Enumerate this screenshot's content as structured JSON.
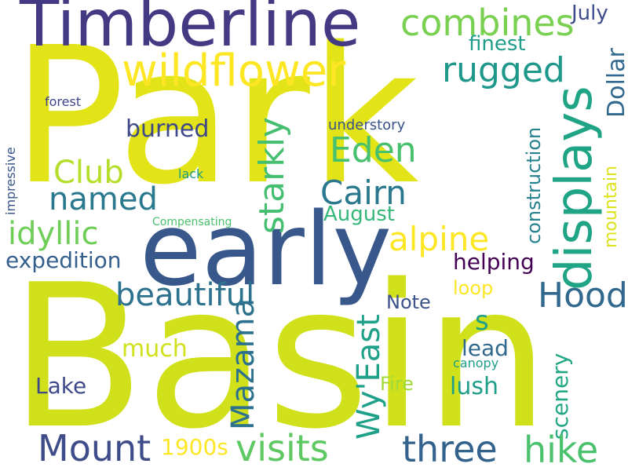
{
  "words": [
    {
      "text": "Park",
      "color": "#e2e418"
    },
    {
      "text": "Basin",
      "color": "#d0e11c"
    },
    {
      "text": "early",
      "color": "#38588c"
    },
    {
      "text": "Timberline",
      "color": "#443983"
    },
    {
      "text": "wildflower",
      "color": "#fde725"
    },
    {
      "text": "displays",
      "color": "#20a486"
    },
    {
      "text": "combines",
      "color": "#7ad151"
    },
    {
      "text": "rugged",
      "color": "#1f988b"
    },
    {
      "text": "finest",
      "color": "#1f9e89"
    },
    {
      "text": "July",
      "color": "#3e4c8a"
    },
    {
      "text": "Dollar",
      "color": "#31688e"
    },
    {
      "text": "starkly",
      "color": "#44bf70"
    },
    {
      "text": "Eden",
      "color": "#48c16e"
    },
    {
      "text": "burned",
      "color": "#3e4989"
    },
    {
      "text": "Club",
      "color": "#b5de2b"
    },
    {
      "text": "named",
      "color": "#2a788e"
    },
    {
      "text": "Cairn",
      "color": "#2a788e"
    },
    {
      "text": "August",
      "color": "#35b779"
    },
    {
      "text": "idyllic",
      "color": "#6ece58"
    },
    {
      "text": "alpine",
      "color": "#fde725"
    },
    {
      "text": "expedition",
      "color": "#355f8d"
    },
    {
      "text": "beautiful",
      "color": "#2c728e"
    },
    {
      "text": "Hood",
      "color": "#31688e"
    },
    {
      "text": "helping",
      "color": "#440154"
    },
    {
      "text": "construction",
      "color": "#26828e"
    },
    {
      "text": "mountain",
      "color": "#dde318"
    },
    {
      "text": "understory",
      "color": "#3b528b"
    },
    {
      "text": "forest",
      "color": "#414487"
    },
    {
      "text": "impressive",
      "color": "#39568c"
    },
    {
      "text": "lack",
      "color": "#1f9a8a"
    },
    {
      "text": "Compensating",
      "color": "#4ac16d"
    },
    {
      "text": "Note",
      "color": "#3b528b"
    },
    {
      "text": "loop",
      "color": "#fde725"
    },
    {
      "text": "s",
      "color": "#1f9e89"
    },
    {
      "text": "Mazama",
      "color": "#2c728e"
    },
    {
      "text": "Wy'East",
      "color": "#1fa088"
    },
    {
      "text": "lead",
      "color": "#31688e"
    },
    {
      "text": "scenery",
      "color": "#22a785"
    },
    {
      "text": "canopy",
      "color": "#1f9e89"
    },
    {
      "text": "Fire",
      "color": "#a0da39"
    },
    {
      "text": "much",
      "color": "#d0e11c"
    },
    {
      "text": "lush",
      "color": "#1f9e89"
    },
    {
      "text": "Lake",
      "color": "#3e4989"
    },
    {
      "text": "Mount",
      "color": "#3e4c8a"
    },
    {
      "text": "visits",
      "color": "#5ec962"
    },
    {
      "text": "three",
      "color": "#33638d"
    },
    {
      "text": "hike",
      "color": "#4ac16d"
    },
    {
      "text": "1900s",
      "color": "#fde725"
    }
  ]
}
